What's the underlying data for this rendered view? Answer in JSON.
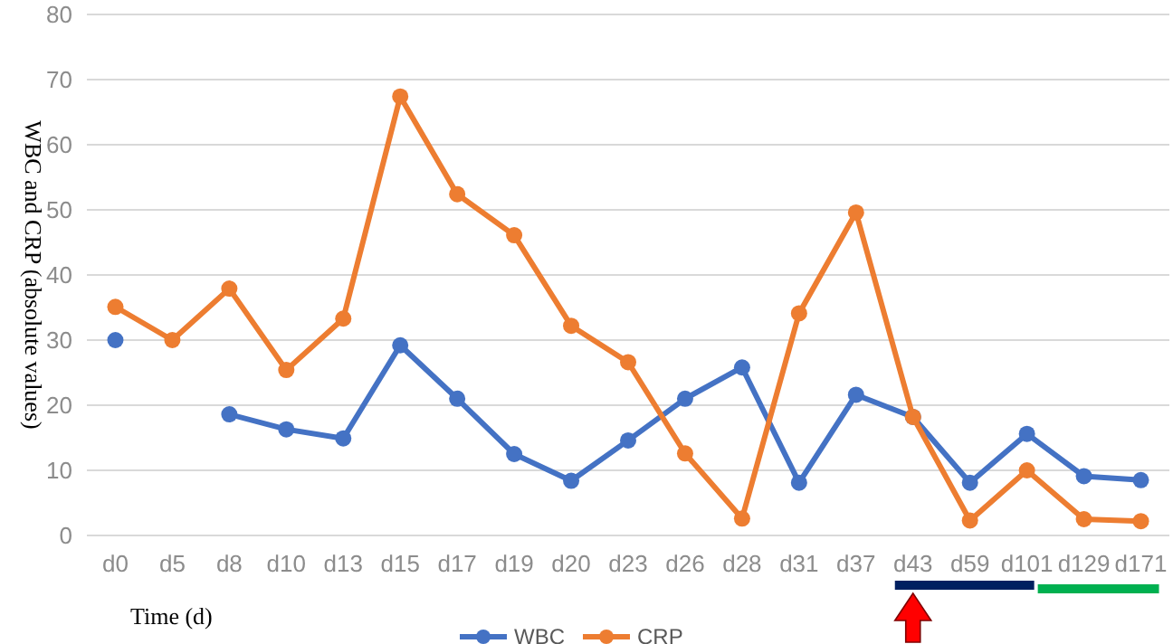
{
  "chart_data": {
    "type": "line",
    "xlabel": "Time (d)",
    "ylabel": "WBC and CRP (absolute values)",
    "categories": [
      "d0",
      "d5",
      "d8",
      "d10",
      "d13",
      "d15",
      "d17",
      "d19",
      "d20",
      "d23",
      "d26",
      "d28",
      "d31",
      "d37",
      "d43",
      "d59",
      "d101",
      "d129",
      "d171"
    ],
    "series": [
      {
        "name": "WBC",
        "color": "#4472c4",
        "values": [
          30,
          null,
          18.6,
          16.3,
          14.9,
          29.2,
          21,
          12.5,
          8.4,
          14.6,
          21,
          25.8,
          8.1,
          21.6,
          18.2,
          8.1,
          15.6,
          9.1,
          8.5
        ]
      },
      {
        "name": "CRP",
        "color": "#ed7d31",
        "values": [
          35.1,
          30,
          37.9,
          25.4,
          33.3,
          67.4,
          52.4,
          46.1,
          32.2,
          26.6,
          12.6,
          2.6,
          34.1,
          49.6,
          18.2,
          2.3,
          10,
          2.5,
          2.2
        ]
      }
    ],
    "ylim": [
      0,
      80
    ],
    "yticks": [
      0,
      10,
      20,
      30,
      40,
      50,
      60,
      70,
      80
    ],
    "grid": "y",
    "legend": "bottom",
    "marker": "circle",
    "line_style": "solid"
  }
}
